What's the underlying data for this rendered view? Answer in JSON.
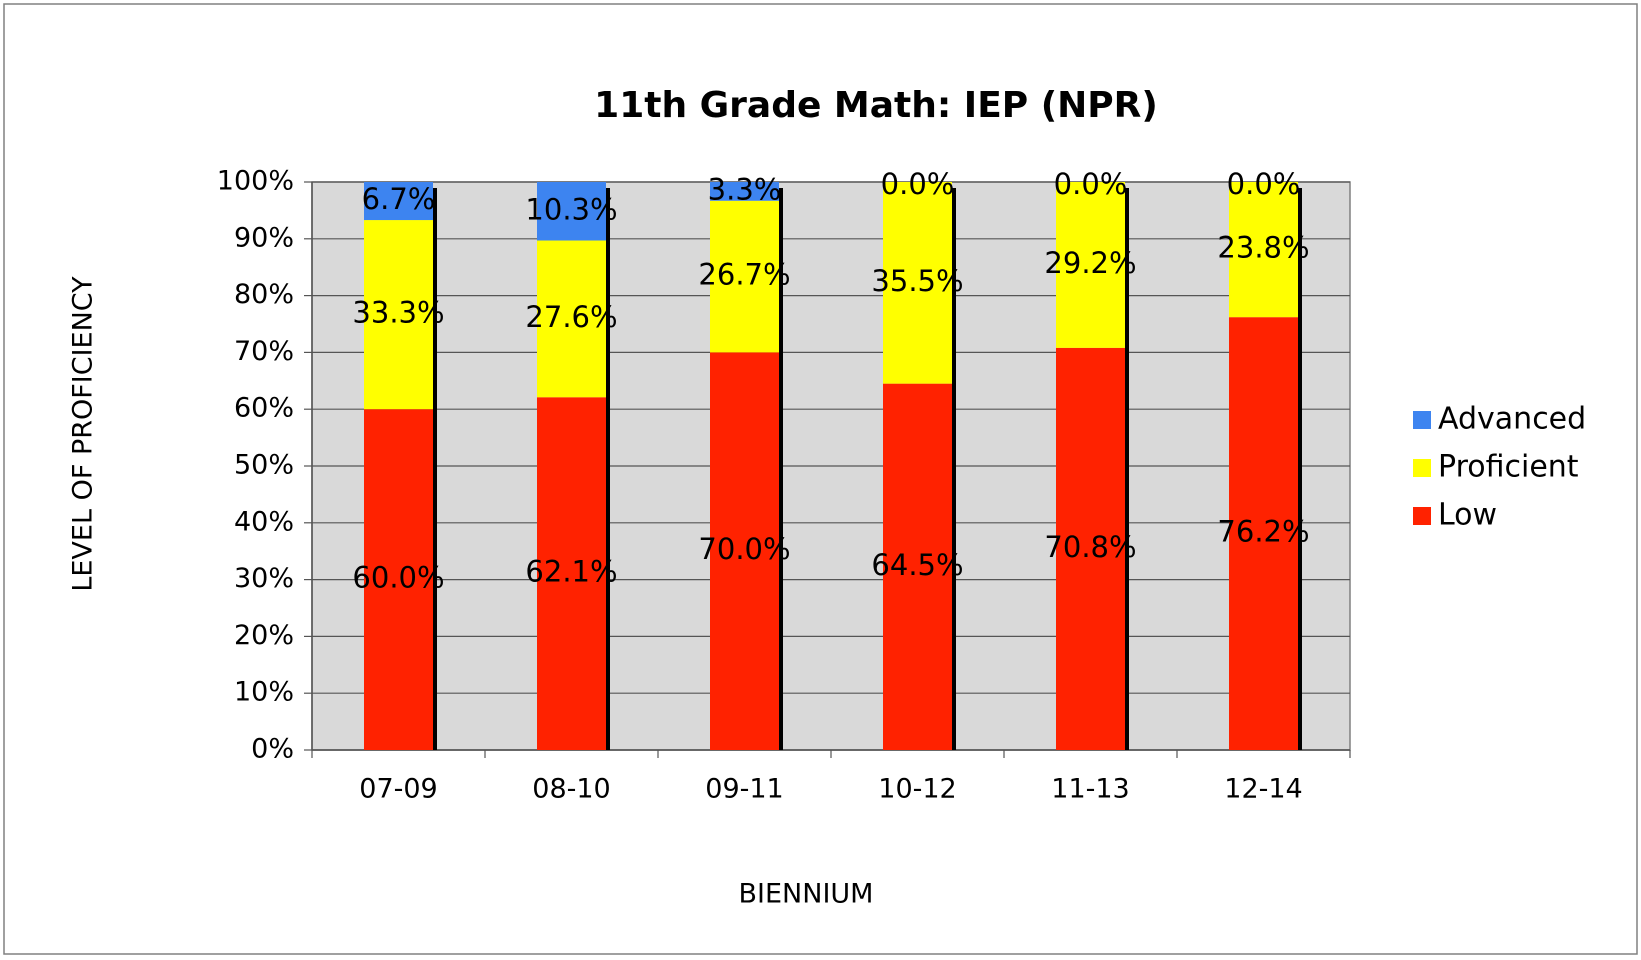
{
  "chart_data": {
    "type": "stacked_bar",
    "title": "11th Grade Math:  IEP (NPR)",
    "x_label": "BIENNIUM",
    "y_label": "LEVEL OF PROFICIENCY",
    "categories": [
      "07-09",
      "08-10",
      "09-11",
      "10-12",
      "11-13",
      "12-14"
    ],
    "series": [
      {
        "name": "Low",
        "color": "#ff2200",
        "values": [
          60.0,
          62.1,
          70.0,
          64.5,
          70.8,
          76.2
        ],
        "value_labels": [
          "60.0%",
          "62.1%",
          "70.0%",
          "64.5%",
          "70.8%",
          "76.2%"
        ]
      },
      {
        "name": "Proficient",
        "color": "#ffff00",
        "values": [
          33.3,
          27.6,
          26.7,
          35.5,
          29.2,
          23.8
        ],
        "value_labels": [
          "33.3%",
          "27.6%",
          "26.7%",
          "35.5%",
          "29.2%",
          "23.8%"
        ]
      },
      {
        "name": "Advanced",
        "color": "#3d84f0",
        "values": [
          6.7,
          10.3,
          3.3,
          0.0,
          0.0,
          0.0
        ],
        "value_labels": [
          "6.7%",
          "10.3%",
          "3.3%",
          "0.0%",
          "0.0%",
          "0.0%"
        ]
      }
    ],
    "ylim": [
      0,
      100
    ],
    "yticks": [
      {
        "value": 0,
        "label": "0%"
      },
      {
        "value": 10,
        "label": "10%"
      },
      {
        "value": 20,
        "label": "20%"
      },
      {
        "value": 30,
        "label": "30%"
      },
      {
        "value": 40,
        "label": "40%"
      },
      {
        "value": 50,
        "label": "50%"
      },
      {
        "value": 60,
        "label": "60%"
      },
      {
        "value": 70,
        "label": "70%"
      },
      {
        "value": 80,
        "label": "80%"
      },
      {
        "value": 90,
        "label": "90%"
      },
      {
        "value": 100,
        "label": "100%"
      }
    ],
    "grid": true,
    "legend": "right"
  }
}
